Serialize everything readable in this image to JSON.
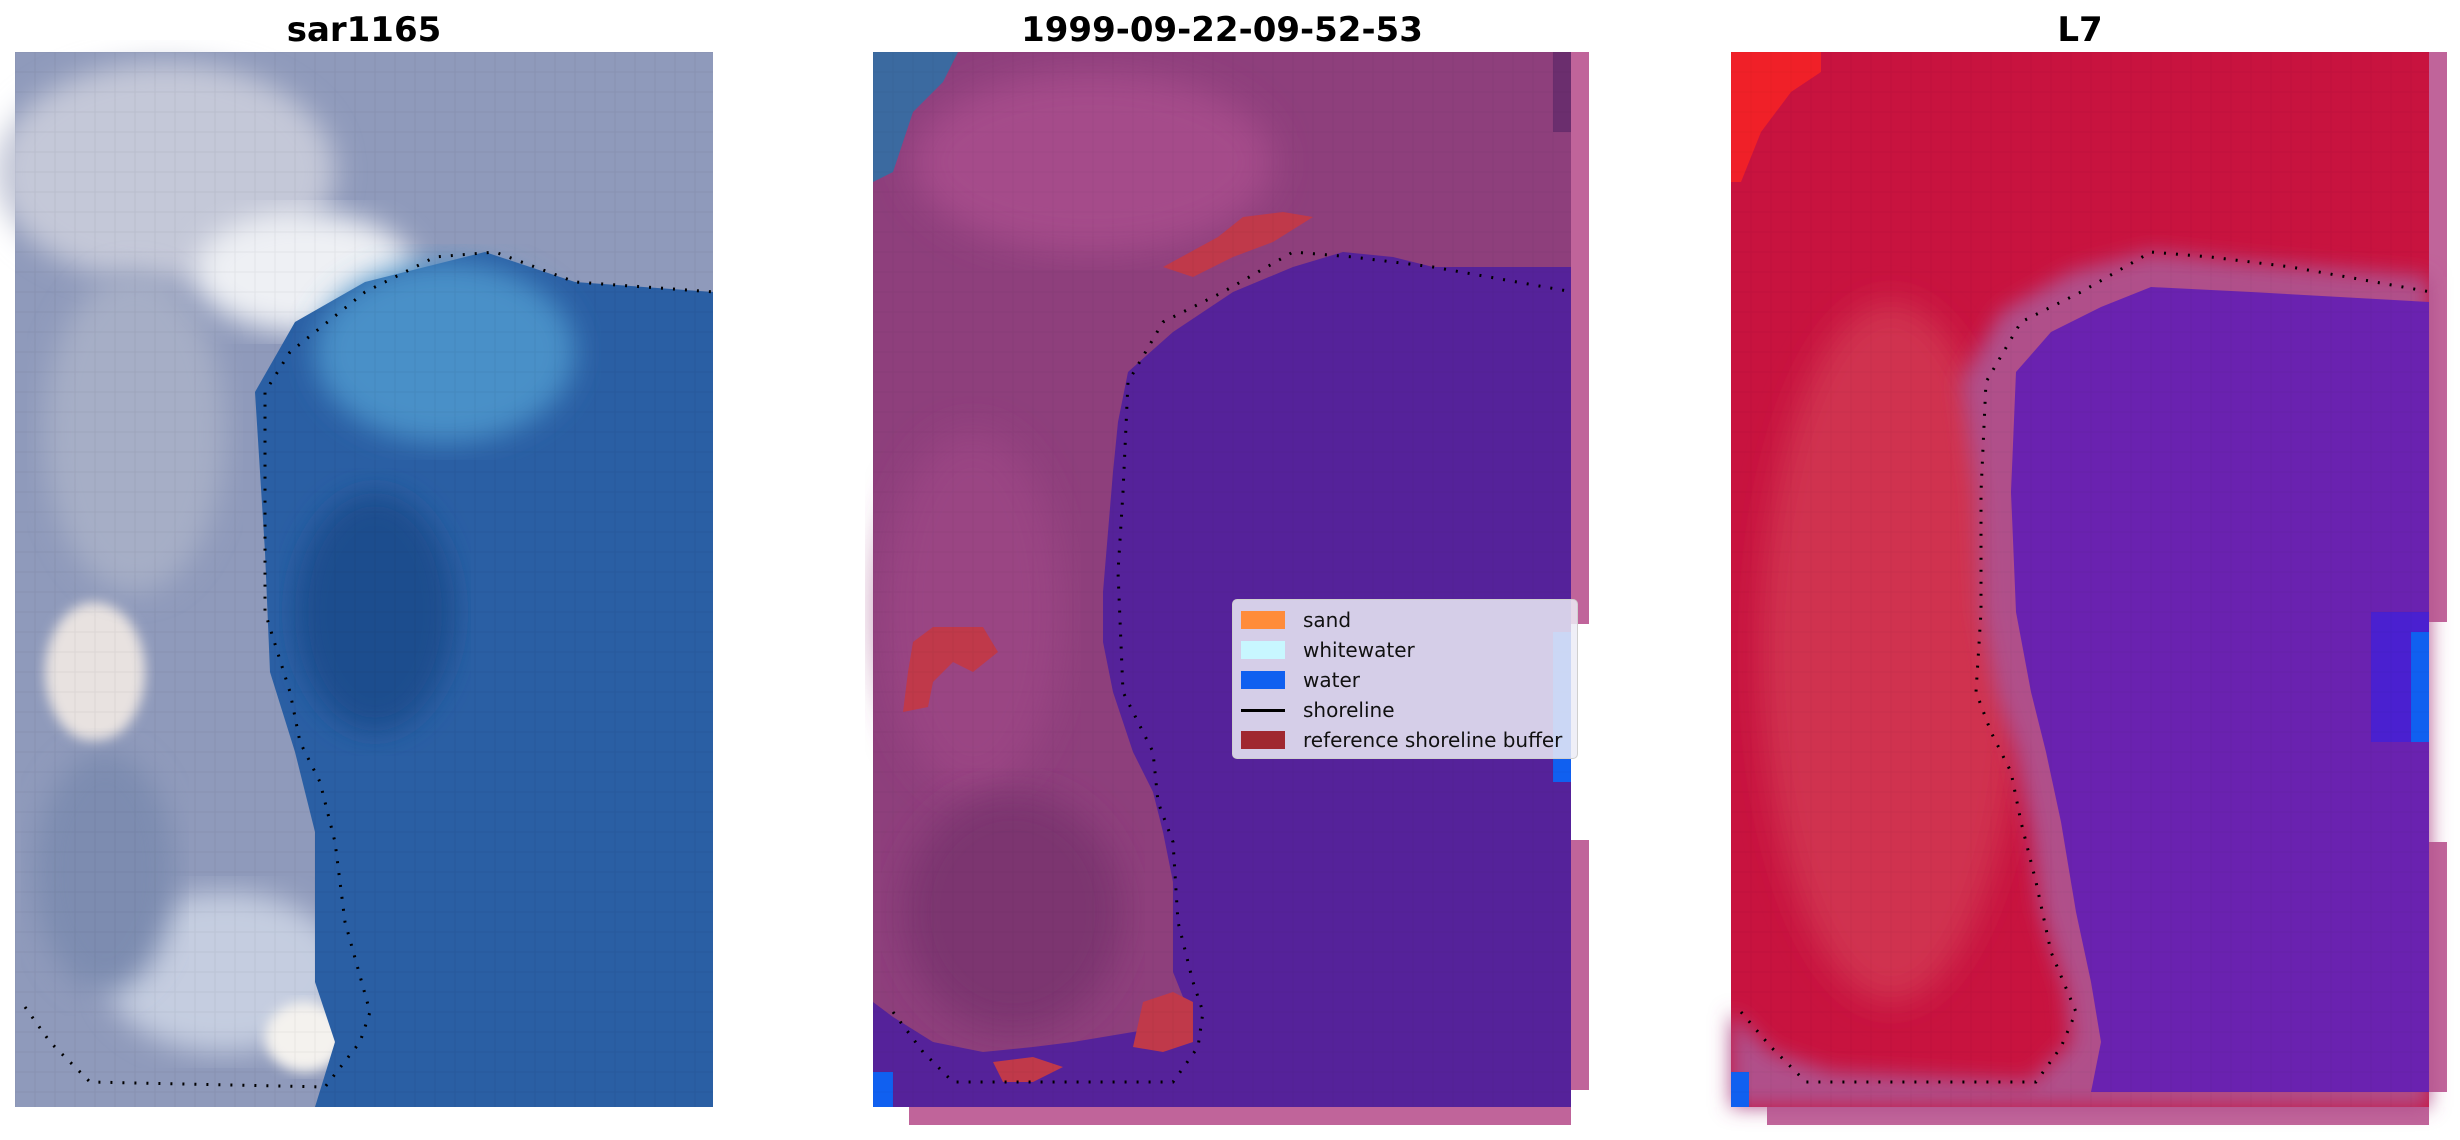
{
  "panels": [
    {
      "title": "sar1165"
    },
    {
      "title": "1999-09-22-09-52-53"
    },
    {
      "title": "L7"
    }
  ],
  "legend": {
    "items": [
      {
        "label": "sand",
        "type": "patch",
        "color": "#ff8c3a"
      },
      {
        "label": "whitewater",
        "type": "patch",
        "color": "#c8f7ff"
      },
      {
        "label": "water",
        "type": "patch",
        "color": "#1060f0"
      },
      {
        "label": "shoreline",
        "type": "line",
        "color": "#000000"
      },
      {
        "label": "reference shoreline buffer",
        "type": "patch",
        "color": "#a02830"
      }
    ]
  },
  "colors": {
    "land_rgb": "#9fa8c4",
    "sea_rgb": "#2d6fb0",
    "land_class": "#8e3f7c",
    "water_class": "#55229a",
    "buffer": "#c0394a",
    "land_index": "#c8133f",
    "water_index": "#6a22b0",
    "index_border": "#c0649a"
  }
}
